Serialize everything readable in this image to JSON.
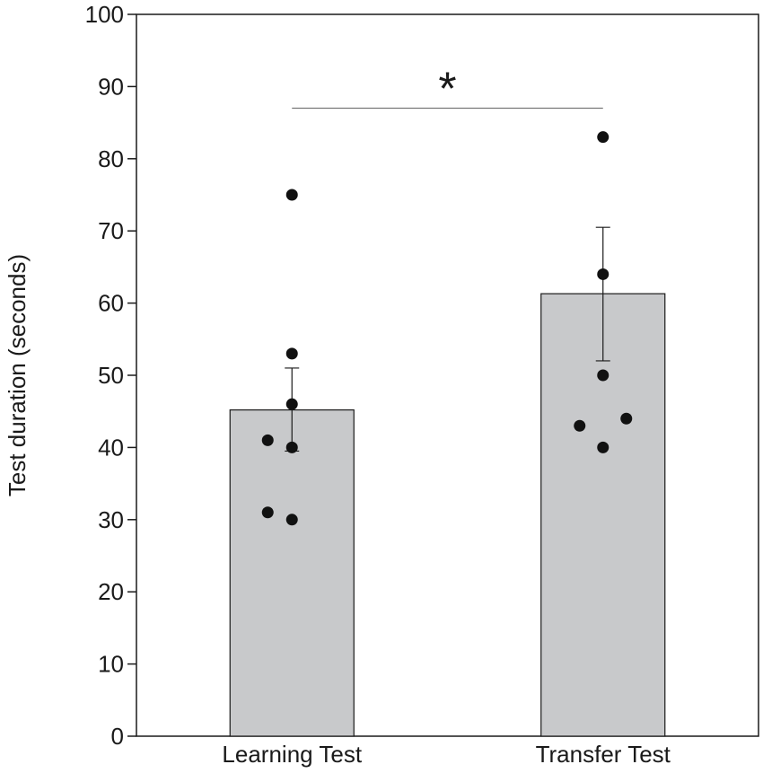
{
  "chart_data": {
    "type": "bar",
    "title": "",
    "xlabel": "",
    "ylabel": "Test duration (seconds)",
    "ylim": [
      0,
      100
    ],
    "yticks": [
      0,
      10,
      20,
      30,
      40,
      50,
      60,
      70,
      80,
      90,
      100
    ],
    "grid": false,
    "categories": [
      "Learning Test",
      "Transfer Test"
    ],
    "values": [
      45.2,
      61.3
    ],
    "error_bars": [
      {
        "low": 39.5,
        "high": 51.0
      },
      {
        "low": 52.0,
        "high": 70.5
      }
    ],
    "points": [
      [
        75,
        53,
        46,
        41,
        40,
        31,
        30
      ],
      [
        83,
        64,
        50,
        44,
        43,
        40
      ]
    ],
    "significance": {
      "label": "*",
      "between": [
        "Learning Test",
        "Transfer Test"
      ],
      "y": 87
    },
    "colors": {
      "bar_fill": "#c8c9cb",
      "bar_stroke": "#1a1a1a",
      "point": "#111111",
      "axis": "#1a1a1a",
      "bracket": "#777777"
    }
  }
}
